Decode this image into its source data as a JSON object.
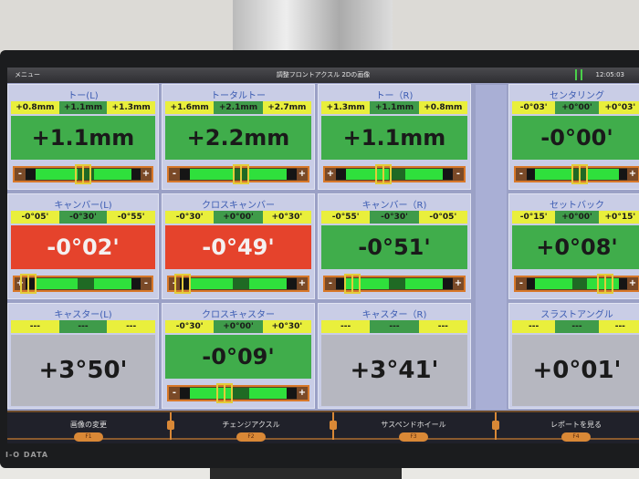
{
  "titlebar": {
    "menu": "メニュー",
    "title": "調整フロントアクスル 2Dの画像",
    "time": "12:05:03"
  },
  "panels": [
    {
      "label": "トー(L)",
      "ranges": [
        "+0.8mm",
        "+1.1mm",
        "+1.3mm"
      ],
      "value": "+1.1mm",
      "status": "green",
      "slider": {
        "left": "-",
        "right": "+",
        "marker": 0.5
      }
    },
    {
      "label": "トータルトー",
      "ranges": [
        "+1.6mm",
        "+2.1mm",
        "+2.7mm"
      ],
      "value": "+2.2mm",
      "status": "green",
      "slider": {
        "left": "-",
        "right": "+",
        "marker": 0.52
      }
    },
    {
      "label": "トー（R)",
      "ranges": [
        "+1.3mm",
        "+1.1mm",
        "+0.8mm"
      ],
      "value": "+1.1mm",
      "status": "green",
      "slider": {
        "left": "+",
        "right": "-",
        "marker": 0.42
      }
    },
    {
      "label": "センタリング",
      "ranges": [
        "-0°03'",
        "+0°00'",
        "+0°03'"
      ],
      "value": "-0°00'",
      "status": "green",
      "slider": {
        "left": "-",
        "right": "+",
        "marker": 0.52
      }
    },
    {
      "label": "キャンバー(L)",
      "ranges": [
        "-0°05'",
        "-0°30'",
        "-0°55'"
      ],
      "value": "-0°02'",
      "status": "red",
      "slider": {
        "left": "+",
        "right": "-",
        "marker": 0.1
      }
    },
    {
      "label": "クロスキャンバー",
      "ranges": [
        "-0°30'",
        "+0°00'",
        "+0°30'"
      ],
      "value": "-0°49'",
      "status": "red",
      "slider": {
        "left": "-",
        "right": "+",
        "marker": 0.1
      }
    },
    {
      "label": "キャンバー（R)",
      "ranges": [
        "-0°55'",
        "-0°30'",
        "-0°05'"
      ],
      "value": "-0°51'",
      "status": "green",
      "slider": {
        "left": "-",
        "right": "+",
        "marker": 0.2
      }
    },
    {
      "label": "セットバック",
      "ranges": [
        "-0°15'",
        "+0°00'",
        "+0°15'"
      ],
      "value": "+0°08'",
      "status": "green",
      "slider": {
        "left": "-",
        "right": "+",
        "marker": 0.73
      }
    },
    {
      "label": "キャスター(L)",
      "ranges": [
        "---",
        "---",
        "---"
      ],
      "value": "+3°50'",
      "status": "gray",
      "slider": null
    },
    {
      "label": "クロスキャスター",
      "ranges": [
        "-0°30'",
        "+0°00'",
        "+0°30'"
      ],
      "value": "-0°09'",
      "status": "green",
      "slider": {
        "left": "-",
        "right": "+",
        "marker": 0.4
      }
    },
    {
      "label": "キャスター（R)",
      "ranges": [
        "---",
        "---",
        "---"
      ],
      "value": "+3°41'",
      "status": "gray",
      "slider": null
    },
    {
      "label": "スラストアングル",
      "ranges": [
        "---",
        "---",
        "---"
      ],
      "value": "+0°01'",
      "status": "gray",
      "slider": null
    }
  ],
  "footer": [
    {
      "label": "画像の変更",
      "key": "F1"
    },
    {
      "label": "チェンジアクスル",
      "key": "F2"
    },
    {
      "label": "サスペンドホイール",
      "key": "F3"
    },
    {
      "label": "レポートを見る",
      "key": "F4"
    }
  ],
  "brand": "I-O DATA",
  "colors": {
    "ok": "#40ad4b",
    "error": "#e5432c",
    "neutral": "#b6b7c0",
    "range_limit": "#e9ef3c",
    "range_target": "#3f9b4a",
    "accent": "#d98836"
  }
}
